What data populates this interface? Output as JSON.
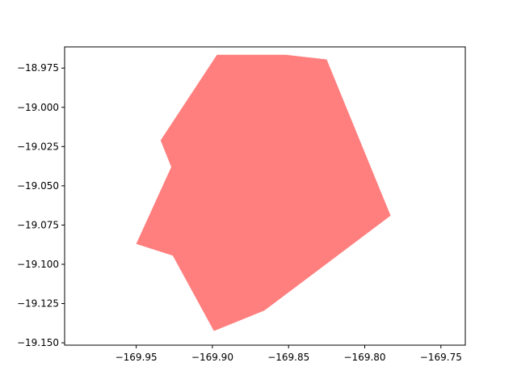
{
  "chart_data": {
    "type": "area",
    "title": "",
    "xlabel": "",
    "ylabel": "",
    "xlim": [
      -169.997,
      -169.734
    ],
    "ylim": [
      -19.1515,
      -18.9615
    ],
    "grid": false,
    "x_ticks": [
      -169.95,
      -169.9,
      -169.85,
      -169.8,
      -169.75
    ],
    "x_tick_labels": [
      "−169.95",
      "−169.90",
      "−169.85",
      "−169.80",
      "−169.75"
    ],
    "y_ticks": [
      -18.975,
      -19.0,
      -19.025,
      -19.05,
      -19.075,
      -19.1,
      -19.125,
      -19.15
    ],
    "y_tick_labels": [
      "−18.975",
      "−19.000",
      "−19.025",
      "−19.050",
      "−19.075",
      "−19.100",
      "−19.125",
      "−19.150"
    ],
    "series": [
      {
        "fill_color": "#ff7f7f",
        "points": [
          [
            -169.897,
            -18.9665
          ],
          [
            -169.852,
            -18.9665
          ],
          [
            -169.825,
            -18.9695
          ],
          [
            -169.783,
            -19.069
          ],
          [
            -169.866,
            -19.1295
          ],
          [
            -169.899,
            -19.1425
          ],
          [
            -169.926,
            -19.0945
          ],
          [
            -169.95,
            -19.087
          ],
          [
            -169.927,
            -19.038
          ],
          [
            -169.934,
            -19.021
          ]
        ]
      }
    ]
  }
}
